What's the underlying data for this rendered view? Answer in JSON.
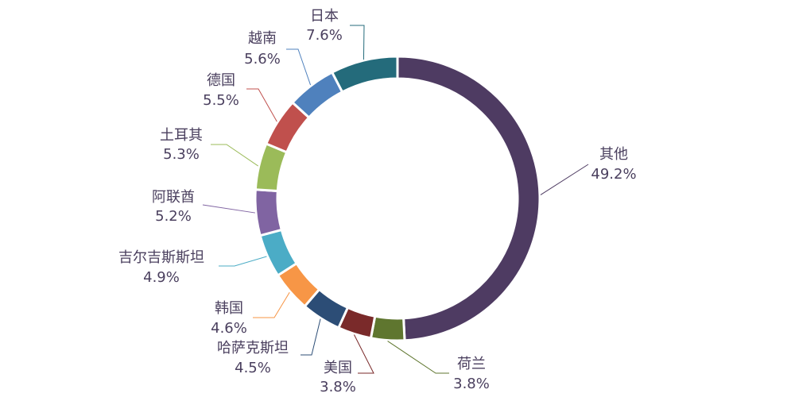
{
  "chart_data": {
    "type": "pie",
    "variant": "donut",
    "title": "",
    "categories": [
      "其他",
      "荷兰",
      "美国",
      "哈萨克斯坦",
      "韩国",
      "吉尔吉斯斯坦",
      "阿联酋",
      "土耳其",
      "德国",
      "越南",
      "日本"
    ],
    "values": [
      49.2,
      3.8,
      3.8,
      4.5,
      4.6,
      4.9,
      5.2,
      5.3,
      5.5,
      5.6,
      7.6
    ],
    "value_labels": [
      "49.2%",
      "3.8%",
      "3.8%",
      "4.5%",
      "4.6%",
      "4.9%",
      "5.2%",
      "5.3%",
      "5.5%",
      "5.6%",
      "7.6%"
    ],
    "colors": [
      "#4e3b62",
      "#5f762f",
      "#7a2a2a",
      "#2c4d76",
      "#f79646",
      "#4bacc6",
      "#8064a2",
      "#9bbb59",
      "#c0504d",
      "#4f81bd",
      "#246b7b"
    ],
    "start": "12 o'clock",
    "direction": "clockwise",
    "legend": "none"
  }
}
